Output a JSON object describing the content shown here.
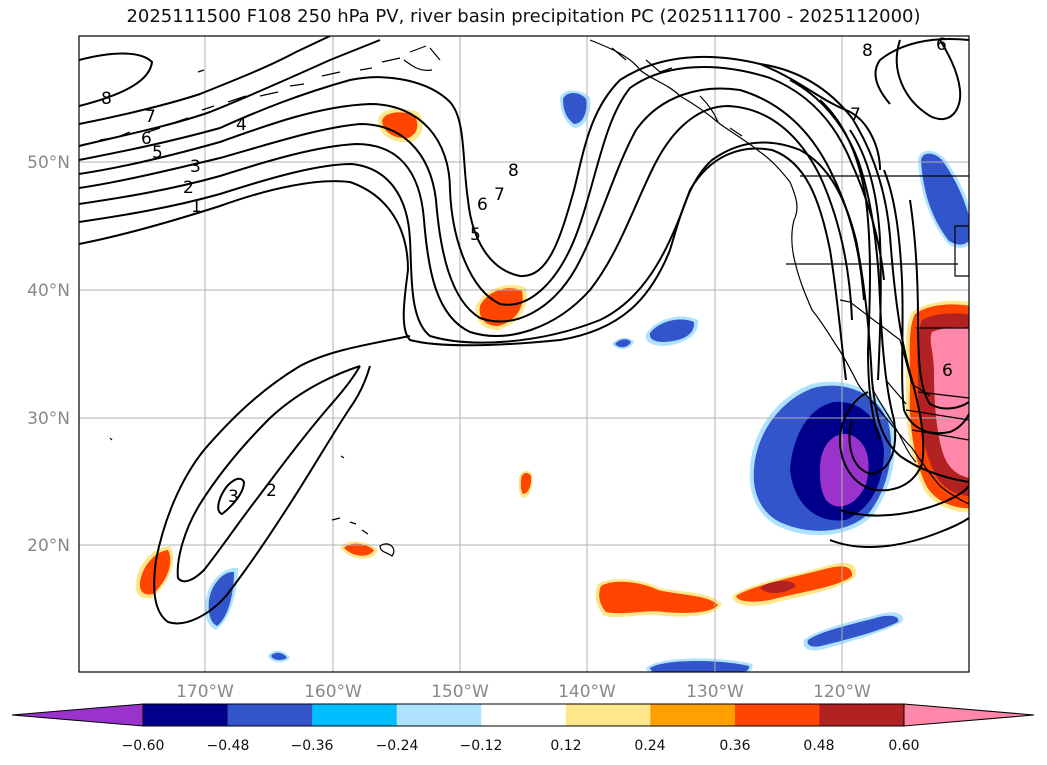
{
  "title": "2025111500 F108 250 hPa PV, river basin precipitation PC (2025111700 - 2025112000)",
  "lat_labels": [
    "50°N",
    "40°N",
    "30°N",
    "20°N"
  ],
  "lon_labels": [
    "170°W",
    "160°W",
    "150°W",
    "140°W",
    "130°W",
    "120°W"
  ],
  "contour_labels": [
    "8",
    "7",
    "6",
    "5",
    "4",
    "3",
    "2",
    "1",
    "8",
    "7",
    "6",
    "5",
    "8",
    "7",
    "6",
    "3",
    "2",
    "6"
  ],
  "colorbar": {
    "ticks": [
      "−0.60",
      "−0.48",
      "−0.36",
      "−0.24",
      "−0.12",
      "0.12",
      "0.24",
      "0.36",
      "0.48",
      "0.60"
    ],
    "colors": [
      "#9933cc",
      "#00008b",
      "#3355cc",
      "#00bfff",
      "#aee2ff",
      "#ffffff",
      "#ffe88c",
      "#ff9f00",
      "#ff4500",
      "#b22222",
      "#ff88aa"
    ]
  },
  "colors": {
    "purple": "#9933cc",
    "navy": "#00008b",
    "royal_blue": "#3355cc",
    "sky_blue": "#00bfff",
    "light_blue": "#aee2ff",
    "yellow": "#ffe88c",
    "orange": "#ff9f00",
    "red_orange": "#ff4500",
    "firebrick": "#b22222",
    "pink": "#ff88aa"
  }
}
